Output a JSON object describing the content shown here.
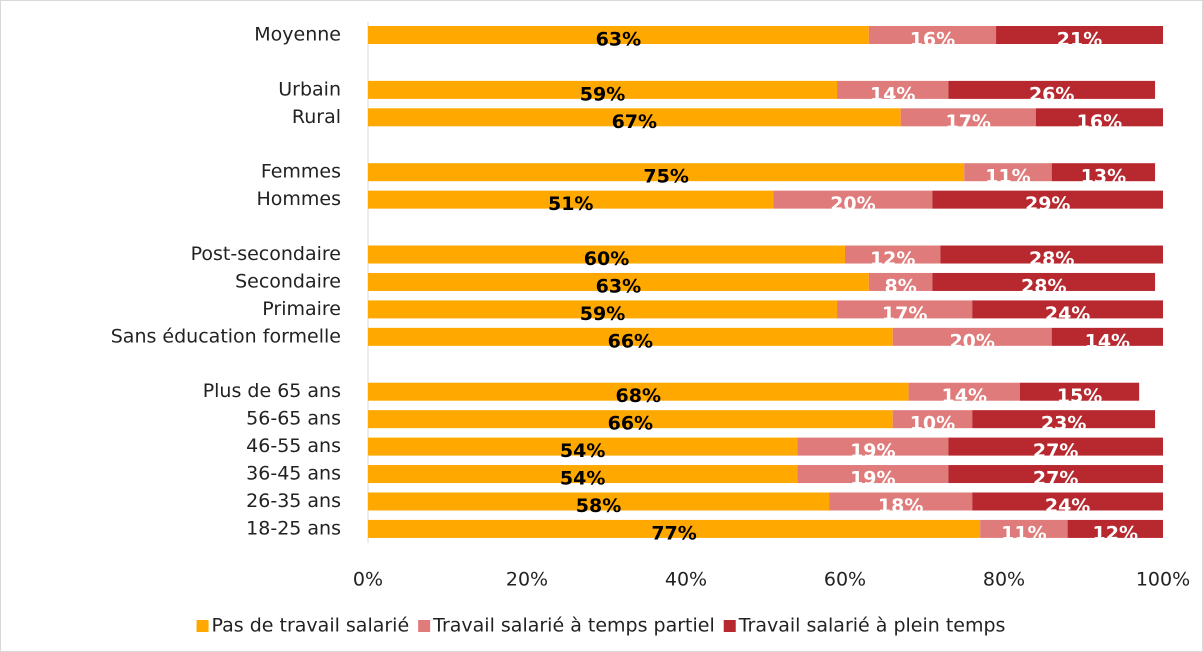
{
  "chart_data": {
    "type": "stacked-bar-horizontal",
    "categories": [
      "Moyenne",
      null,
      "Urbain",
      "Rural",
      null,
      "Femmes",
      "Hommes",
      null,
      "Post-secondaire",
      "Secondaire",
      "Primaire",
      "Sans éducation formelle",
      null,
      "Plus de 65 ans",
      "56-65 ans",
      "46-55 ans",
      "36-45 ans",
      "26-35 ans",
      "18-25 ans"
    ],
    "series": [
      {
        "name": "Pas de travail salarié",
        "color": "#FFA800",
        "values": [
          63,
          null,
          59,
          67,
          null,
          75,
          51,
          null,
          60,
          63,
          59,
          66,
          null,
          68,
          66,
          54,
          54,
          58,
          77
        ],
        "value_labels": [
          "63%",
          null,
          "59%",
          "67%",
          null,
          "75%",
          "51%",
          null,
          "60%",
          "63%",
          "59%",
          "66%",
          null,
          "68%",
          "66%",
          "54%",
          "54%",
          "58%",
          "77%"
        ]
      },
      {
        "name": "Travail salarié à temps partiel",
        "color": "#E07B7B",
        "values": [
          16,
          null,
          14,
          17,
          null,
          11,
          20,
          null,
          12,
          8,
          17,
          20,
          null,
          14,
          10,
          19,
          19,
          18,
          11
        ],
        "value_labels": [
          "16%",
          null,
          "14%",
          "17%",
          null,
          "11%",
          "20%",
          null,
          "12%",
          "8%",
          "17%",
          "20%",
          null,
          "14%",
          "10%",
          "19%",
          "19%",
          "18%",
          "11%"
        ]
      },
      {
        "name": "Travail salarié à plein temps",
        "color": "#B8282F",
        "values": [
          21,
          null,
          26,
          16,
          null,
          13,
          29,
          null,
          28,
          28,
          24,
          14,
          null,
          15,
          23,
          27,
          27,
          24,
          12
        ],
        "value_labels": [
          "21%",
          null,
          "26%",
          "16%",
          null,
          "13%",
          "29%",
          null,
          "28%",
          "28%",
          "24%",
          "14%",
          null,
          "15%",
          "23%",
          "27%",
          "27%",
          "24%",
          "12%"
        ]
      }
    ],
    "xlim": [
      0,
      100
    ],
    "xticks": [
      {
        "value": 0,
        "label": "0%"
      },
      {
        "value": 20,
        "label": "20%"
      },
      {
        "value": 40,
        "label": "40%"
      },
      {
        "value": 60,
        "label": "60%"
      },
      {
        "value": 80,
        "label": "80%"
      },
      {
        "value": 100,
        "label": "100%"
      }
    ],
    "legend": "bottom"
  }
}
